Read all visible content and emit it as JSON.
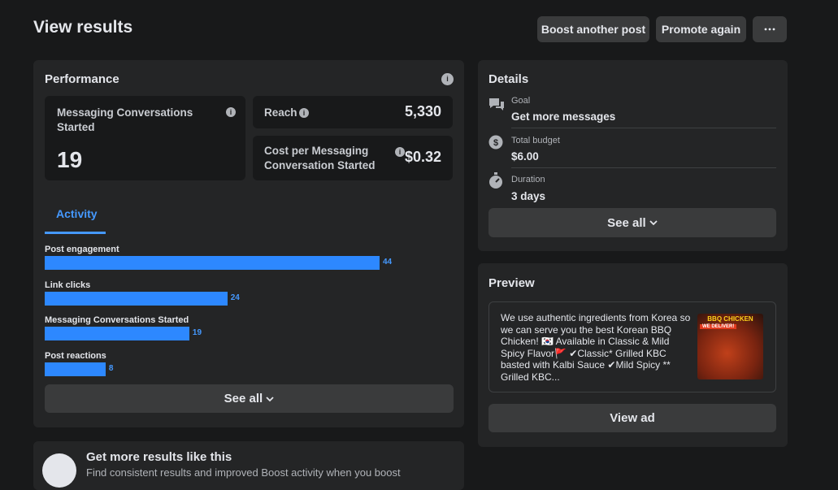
{
  "header": {
    "title": "View results",
    "buttons": [
      "Boost another post",
      "Promote again"
    ]
  },
  "performance": {
    "title": "Performance",
    "metrics": [
      {
        "label": "Messaging Conversations Started",
        "value": "19"
      },
      {
        "label": "Reach",
        "value": "5,330"
      },
      {
        "label": "Cost per Messaging Conversation Started",
        "value": "$0.32"
      }
    ],
    "tab": "Activity",
    "chart_data": {
      "type": "bar",
      "orientation": "horizontal",
      "categories": [
        "Post engagement",
        "Link clicks",
        "Messaging Conversations Started",
        "Post reactions"
      ],
      "values": [
        44,
        24,
        19,
        8
      ],
      "color": "#2d88ff",
      "label_color": "#4599ff"
    },
    "see_all": "See all"
  },
  "details": {
    "title": "Details",
    "rows": [
      {
        "label": "Goal",
        "value": "Get more messages"
      },
      {
        "label": "Total budget",
        "value": "$6.00"
      },
      {
        "label": "Duration",
        "value": "3 days"
      }
    ],
    "see_all": "See all"
  },
  "preview": {
    "title": "Preview",
    "text": "We use authentic ingredients from Korea so we can serve you the best Korean BBQ Chicken! 🇰🇷 Available in Classic & Mild Spicy Flavor🚩 ✔Classic* Grilled KBC basted with Kalbi Sauce ✔Mild Spicy ** Grilled KBC...",
    "image_title": "BBQ CHICKEN",
    "image_badge": "WE DELIVER!",
    "button": "View ad"
  },
  "promo": {
    "title": "Get more results like this",
    "text": "Find consistent results and improved Boost activity when you boost"
  }
}
